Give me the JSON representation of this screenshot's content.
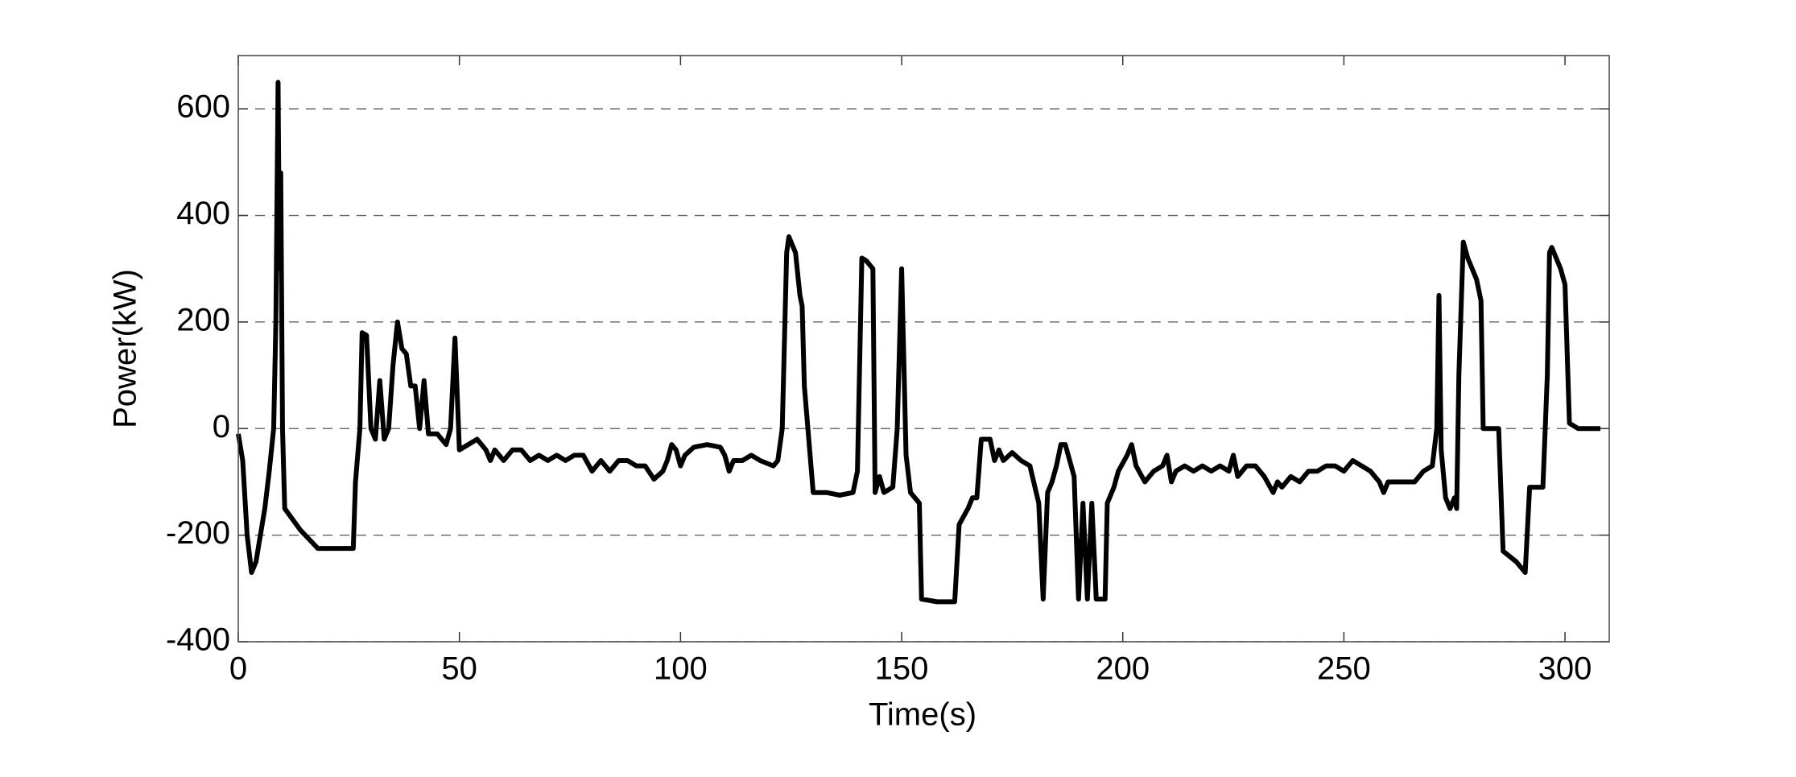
{
  "chart_data": {
    "type": "line",
    "xlabel": "Time(s)",
    "ylabel": "Power(kW)",
    "color": "#000000",
    "grid": true,
    "xlim": [
      0,
      310
    ],
    "ylim": [
      -400,
      700
    ],
    "xticks": [
      0,
      50,
      100,
      150,
      200,
      250,
      300
    ],
    "yticks": [
      -400,
      -200,
      0,
      200,
      400,
      600
    ],
    "x": [
      0,
      1,
      2,
      3,
      4,
      5,
      6,
      7,
      8,
      8.5,
      9,
      9.3,
      9.6,
      10,
      10.5,
      14,
      18,
      26,
      26.5,
      27.5,
      28,
      29,
      30,
      31,
      32,
      33,
      34,
      35,
      36,
      37,
      38,
      39,
      40,
      41,
      42,
      43,
      45,
      47,
      48,
      49,
      50,
      52,
      54,
      56,
      57,
      58,
      60,
      62,
      64,
      66,
      68,
      70,
      72,
      74,
      76,
      78,
      80,
      82,
      84,
      86,
      88,
      90,
      92,
      94,
      96,
      97,
      98,
      99,
      100,
      101,
      103,
      106,
      109,
      110,
      111,
      112,
      114,
      116,
      118,
      121,
      122,
      123,
      124,
      124.5,
      125,
      126,
      127,
      127.5,
      128,
      130,
      133,
      136,
      139,
      140,
      141,
      142,
      143.5,
      144,
      145,
      146,
      148,
      149,
      150,
      151,
      152,
      154,
      154.5,
      158,
      160,
      162,
      163,
      165,
      166,
      167,
      168,
      170,
      171,
      172,
      173,
      175,
      177,
      179,
      181,
      182,
      183,
      184,
      185,
      186,
      187,
      188,
      189,
      190,
      191,
      192,
      193,
      194,
      196,
      196.5,
      198,
      199,
      201,
      202,
      203,
      205,
      207,
      209,
      210,
      211,
      212,
      214,
      216,
      218,
      220,
      222,
      224,
      225,
      226,
      228,
      230,
      232,
      234,
      235,
      236,
      238,
      240,
      242,
      244,
      246,
      248,
      250,
      252,
      254,
      256,
      258,
      259,
      260,
      262,
      264,
      266,
      268,
      270,
      271,
      271.5,
      272,
      273,
      274,
      275,
      275.5,
      276,
      277,
      278,
      280,
      281,
      281.5,
      285,
      286,
      289,
      291,
      292,
      295,
      296,
      296.5,
      297,
      299,
      300,
      301,
      303,
      308
    ],
    "values": [
      -10,
      -60,
      -200,
      -270,
      -250,
      -200,
      -150,
      -80,
      0,
      200,
      650,
      300,
      480,
      0,
      -150,
      -190,
      -225,
      -225,
      -100,
      0,
      180,
      175,
      0,
      -20,
      90,
      -20,
      0,
      120,
      200,
      150,
      140,
      80,
      80,
      0,
      90,
      -10,
      -10,
      -30,
      0,
      170,
      -40,
      -30,
      -20,
      -40,
      -60,
      -40,
      -60,
      -40,
      -40,
      -60,
      -50,
      -60,
      -50,
      -60,
      -50,
      -50,
      -80,
      -60,
      -80,
      -60,
      -60,
      -70,
      -70,
      -95,
      -80,
      -60,
      -30,
      -40,
      -70,
      -50,
      -35,
      -30,
      -35,
      -50,
      -80,
      -60,
      -60,
      -50,
      -60,
      -70,
      -60,
      0,
      330,
      360,
      350,
      330,
      250,
      230,
      80,
      -120,
      -120,
      -125,
      -120,
      -80,
      320,
      315,
      300,
      -120,
      -90,
      -120,
      -110,
      0,
      300,
      -50,
      -120,
      -140,
      -320,
      -325,
      -325,
      -325,
      -180,
      -150,
      -130,
      -130,
      -20,
      -20,
      -60,
      -40,
      -60,
      -45,
      -60,
      -70,
      -140,
      -320,
      -120,
      -100,
      -70,
      -30,
      -30,
      -60,
      -90,
      -320,
      -140,
      -320,
      -140,
      -320,
      -320,
      -140,
      -110,
      -80,
      -50,
      -30,
      -70,
      -100,
      -80,
      -70,
      -50,
      -100,
      -80,
      -70,
      -80,
      -70,
      -80,
      -70,
      -80,
      -50,
      -90,
      -70,
      -70,
      -90,
      -120,
      -100,
      -110,
      -90,
      -100,
      -80,
      -80,
      -70,
      -70,
      -80,
      -60,
      -70,
      -80,
      -100,
      -120,
      -100,
      -100,
      -100,
      -100,
      -80,
      -70,
      0,
      250,
      -40,
      -130,
      -150,
      -130,
      -150,
      100,
      350,
      320,
      280,
      240,
      0,
      0,
      -230,
      -250,
      -270,
      -110,
      -110,
      100,
      330,
      340,
      300,
      270,
      10,
      0,
      0
    ]
  }
}
